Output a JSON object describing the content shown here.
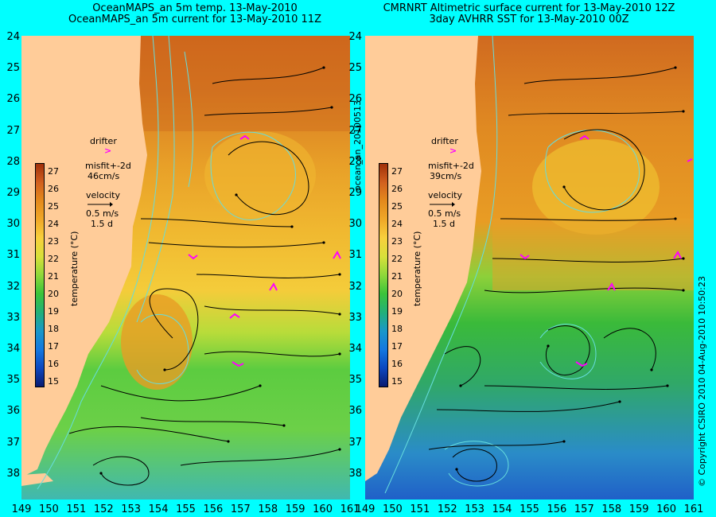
{
  "left_panel": {
    "title_line1": "OceanMAPS_an 5m temp. 13-May-2010",
    "title_line2": "OceanMAPS_an 5m current for 13-May-2010 11Z",
    "drifter_label": "drifter",
    "misfit_label": "misfit+-2d",
    "misfit_value": "46cm/s",
    "velocity_label": "velocity",
    "velocity_scale": "0.5 m/s",
    "velocity_days": "1.5 d"
  },
  "right_panel": {
    "title_line1": "CMRNRT Altimetric surface current for 13-May-2010 12Z",
    "title_line2": "3day AVHRR SST for 13-May-2010 00Z",
    "drifter_label": "drifter",
    "misfit_label": "misfit+-2d",
    "misfit_value": "39cm/s",
    "velocity_label": "velocity",
    "velocity_scale": "0.5 m/s",
    "velocity_days": "1.5 d"
  },
  "colorbar": {
    "label": "temperature (°C)",
    "ticks": [
      "27",
      "26",
      "25",
      "24",
      "23",
      "22",
      "21",
      "20",
      "19",
      "18",
      "17",
      "16",
      "15"
    ],
    "colors": [
      "#a0300a",
      "#d2601e",
      "#e48a1c",
      "#f0a828",
      "#f8d03c",
      "#d8e03a",
      "#8ed83a",
      "#3ac43a",
      "#22b078",
      "#1a98c8",
      "#1478e0",
      "#0c48c0",
      "#0a1a70"
    ]
  },
  "latitude_ticks": [
    "24",
    "25",
    "26",
    "27",
    "28",
    "29",
    "30",
    "31",
    "32",
    "33",
    "34",
    "35",
    "36",
    "37",
    "38"
  ],
  "longitude_ticks": [
    "149",
    "150",
    "151",
    "152",
    "153",
    "154",
    "155",
    "156",
    "157",
    "158",
    "159",
    "160",
    "161"
  ],
  "side_label": "ocean_an_20100513",
  "copyright": "© Copyright CSIRO 2010   04-Aug-2010 10:50:23",
  "colors": {
    "background": "#00ffff",
    "land": "#ffcc99",
    "drifter": "#ff00ff",
    "contour": "#66dddd"
  }
}
